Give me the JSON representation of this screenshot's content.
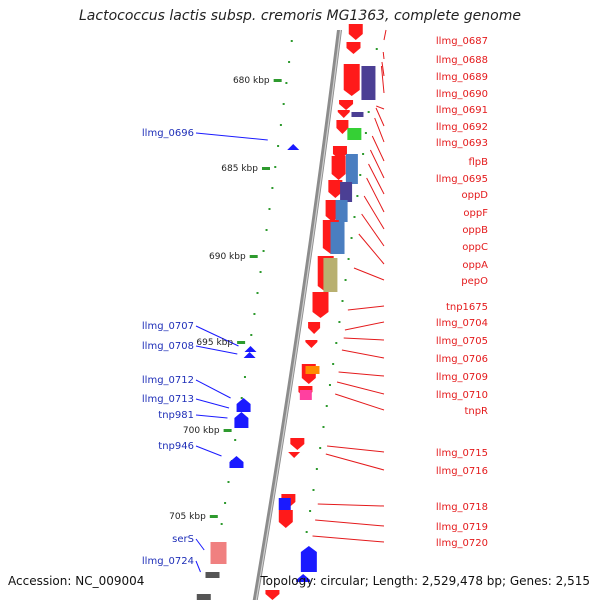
{
  "title": "Lactococcus lactis subsp. cremoris MG1363, complete genome",
  "accession": "Accession: NC_009004",
  "topology": "Topology: circular; Length: 2,529,478 bp; Genes: 2,515",
  "colors": {
    "forward_gene": "#ff1a1a",
    "reverse_gene": "#1a1aff",
    "label_forward": "#e41a1c",
    "label_reverse": "#1f2fb8",
    "leader_line": "#e41a1c",
    "tick_dot": "#2e9a2e",
    "backbone": "#9a9a9a",
    "domain_purple": "#4b3f94",
    "domain_blue": "#4a7ec0",
    "domain_green": "#35d035",
    "domain_olive": "#b8b070",
    "domain_orange": "#ff8c00",
    "domain_pink": "#ff40a0",
    "domain_salmon": "#f08080"
  },
  "scale_ticks": [
    "680 kbp",
    "685 kbp",
    "690 kbp",
    "695 kbp",
    "700 kbp",
    "705 kbp"
  ],
  "right_genes": [
    {
      "name": "llmg_0687"
    },
    {
      "name": "llmg_0688"
    },
    {
      "name": "llmg_0689"
    },
    {
      "name": "llmg_0690"
    },
    {
      "name": "llmg_0691"
    },
    {
      "name": "llmg_0692"
    },
    {
      "name": "llmg_0693"
    },
    {
      "name": "flpB"
    },
    {
      "name": "llmg_0695"
    },
    {
      "name": "oppD"
    },
    {
      "name": "oppF"
    },
    {
      "name": "oppB"
    },
    {
      "name": "oppC"
    },
    {
      "name": "oppA"
    },
    {
      "name": "pepO"
    },
    {
      "name": "tnp1675"
    },
    {
      "name": "llmg_0704"
    },
    {
      "name": "llmg_0705"
    },
    {
      "name": "llmg_0706"
    },
    {
      "name": "llmg_0709"
    },
    {
      "name": "llmg_0710"
    },
    {
      "name": "tnpR"
    },
    {
      "name": "llmg_0715"
    },
    {
      "name": "llmg_0716"
    },
    {
      "name": "llmg_0718"
    },
    {
      "name": "llmg_0719"
    },
    {
      "name": "llmg_0720"
    }
  ],
  "left_genes": [
    {
      "name": "llmg_0696"
    },
    {
      "name": "llmg_0707"
    },
    {
      "name": "llmg_0708"
    },
    {
      "name": "llmg_0712"
    },
    {
      "name": "llmg_0713"
    },
    {
      "name": "tnp981"
    },
    {
      "name": "tnp946"
    },
    {
      "name": "serS"
    },
    {
      "name": "llmg_0724"
    }
  ]
}
